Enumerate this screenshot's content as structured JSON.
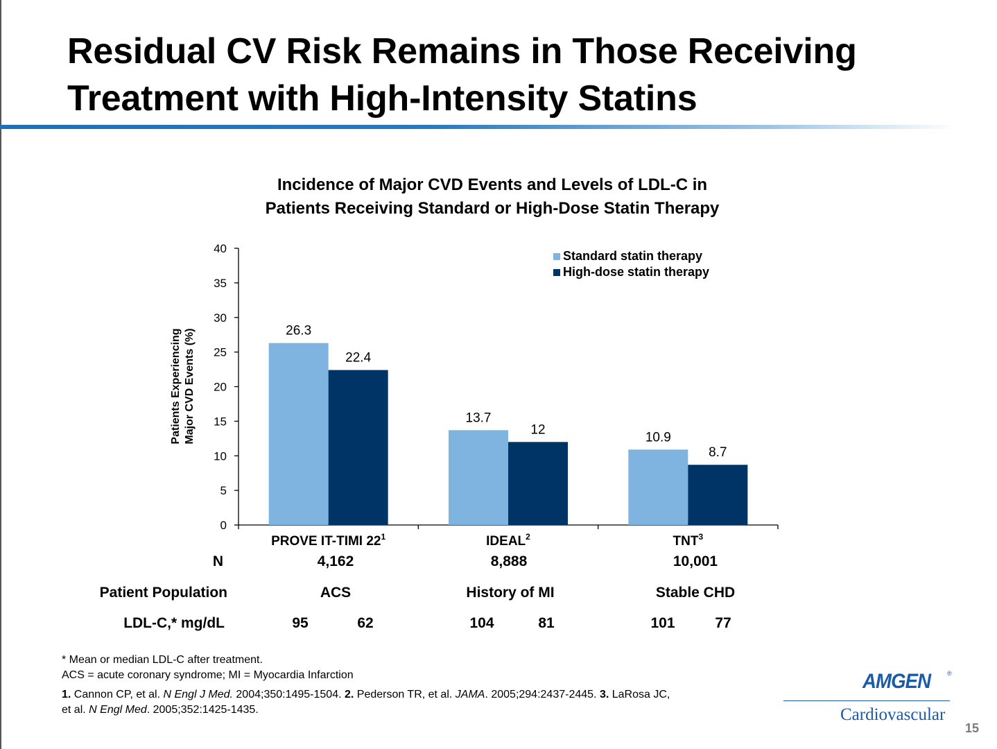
{
  "slide": {
    "title_line1": "Residual CV Risk Remains in Those Receiving",
    "title_line2": "Treatment with High-Intensity Statins",
    "page_number": "15"
  },
  "chart_data": {
    "type": "bar",
    "title_line1": "Incidence of Major CVD Events and Levels of LDL-C in",
    "title_line2": "Patients Receiving Standard or High-Dose Statin Therapy",
    "ylabel_line1": "Patients Experiencing",
    "ylabel_line2": "Major CVD Events (%)",
    "ylim": [
      0,
      40
    ],
    "yticks": [
      0,
      5,
      10,
      15,
      20,
      25,
      30,
      35,
      40
    ],
    "categories": [
      {
        "name": "PROVE IT-TIMI 22",
        "sup": "1"
      },
      {
        "name": "IDEAL",
        "sup": "2"
      },
      {
        "name": "TNT",
        "sup": "3"
      }
    ],
    "series": [
      {
        "name": "Standard statin therapy",
        "color": "#7fb3e0",
        "values": [
          26.3,
          13.7,
          10.9
        ]
      },
      {
        "name": "High-dose statin therapy",
        "color": "#003366",
        "values": [
          22.4,
          12,
          8.7
        ]
      }
    ],
    "legend_position": "top-right",
    "grid": false
  },
  "table": {
    "n_label": "N",
    "n_values": [
      "4,162",
      "8,888",
      "10,001"
    ],
    "population_label": "Patient Population",
    "population_values": [
      "ACS",
      "History of MI",
      "Stable CHD"
    ],
    "ldl_label": "LDL-C,* mg/dL",
    "ldl_values": [
      [
        "95",
        "62"
      ],
      [
        "104",
        "81"
      ],
      [
        "101",
        "77"
      ]
    ]
  },
  "footnotes": {
    "line1": "* Mean or median LDL-C after treatment.",
    "line2": "ACS = acute coronary syndrome; MI = Myocardia Infarction",
    "ref1_num": "1.",
    "ref1_a": " Cannon CP, et al. ",
    "ref1_journal": "N Engl J Med.",
    "ref1_b": " 2004;350:1495-1504. ",
    "ref2_num": "2.",
    "ref2_a": " Pederson TR, et al. ",
    "ref2_journal": "JAMA",
    "ref2_b": ". 2005;294:2437-2445. ",
    "ref3_num": "3.",
    "ref3_a": " LaRosa JC,",
    "ref3_c": "et al. ",
    "ref3_journal": "N Engl Med",
    "ref3_b": ". 2005;352:1425-1435."
  },
  "logo": {
    "brand": "AMGEN",
    "registered": "®",
    "division": "Cardiovascular"
  }
}
